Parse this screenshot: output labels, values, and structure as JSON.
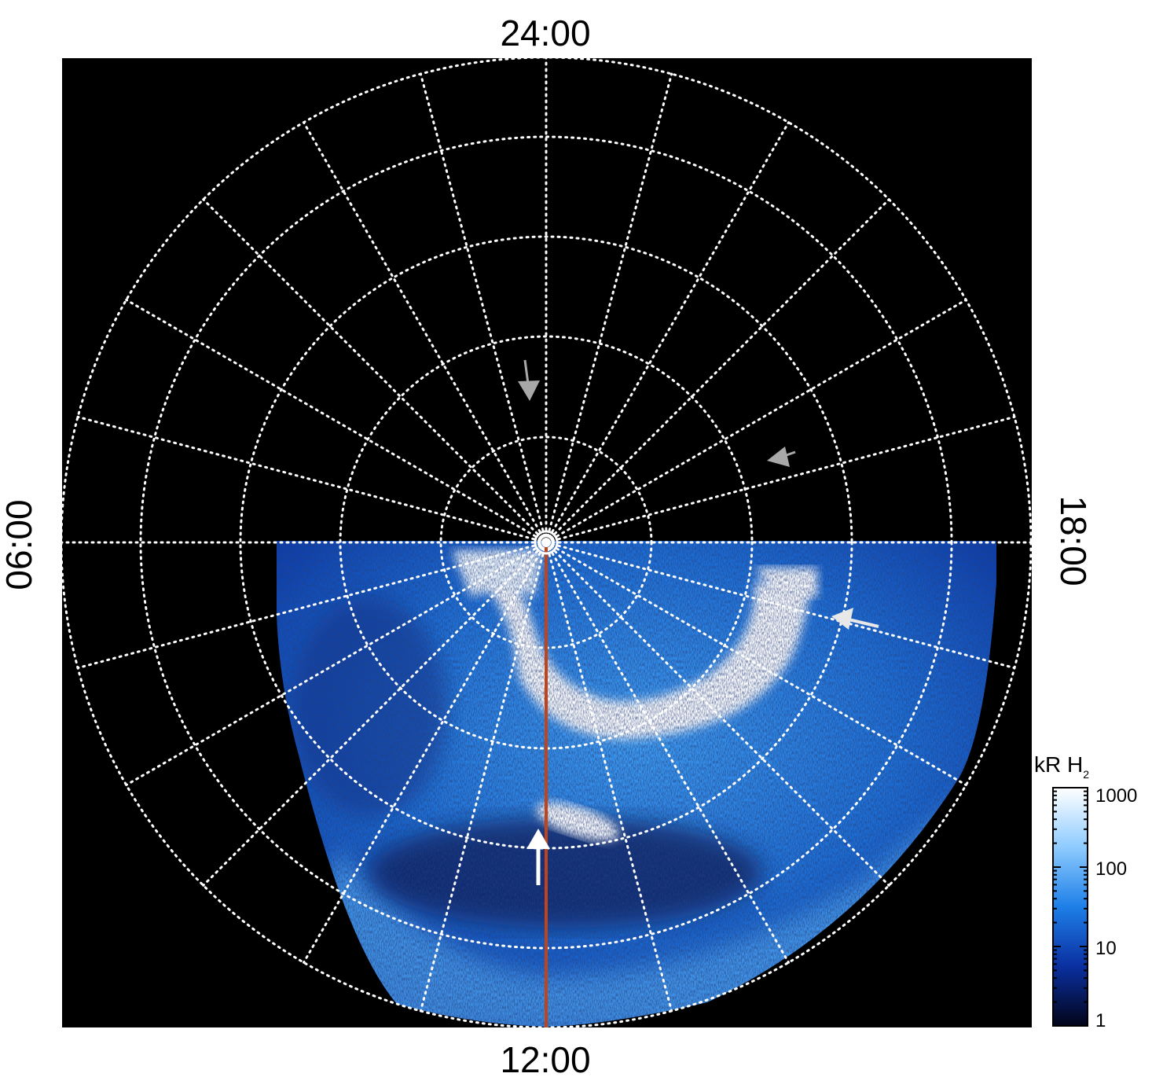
{
  "figure": {
    "labels": {
      "top": "24:00",
      "bottom": "12:00",
      "left": "06:00",
      "right": "18:00"
    },
    "colorbar": {
      "title": "kR H",
      "title_subscript": "2",
      "ticks": [
        "1000",
        "100",
        "10",
        "1"
      ],
      "scale": "log",
      "range": [
        1,
        1000
      ],
      "colors": [
        "#ffffff",
        "#8ecbff",
        "#1e7fe8",
        "#0a2fa0",
        "#020418"
      ]
    },
    "colors": {
      "background": "#000000",
      "grid": "#ffffff",
      "meridian_line": "#c0431a",
      "arrow_white": "#ffffff",
      "arrow_gray": "#a8a8a8"
    }
  }
}
